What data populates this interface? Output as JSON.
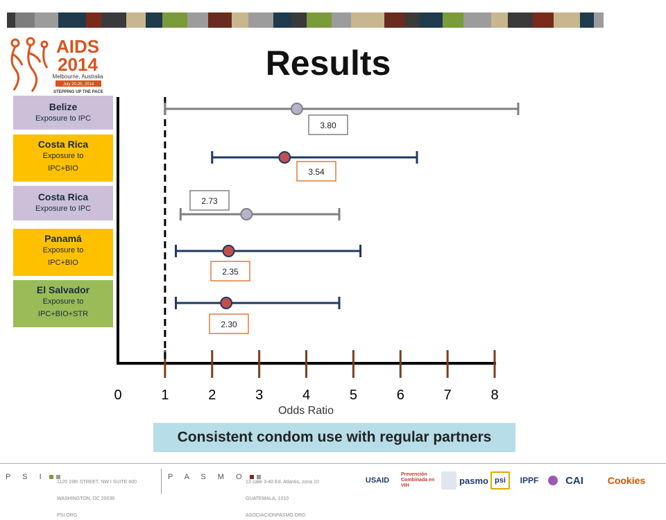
{
  "slide": {
    "title": "Results",
    "subtitle": "Consistent condom use with regular partners"
  },
  "conference_logo": {
    "title": "AIDS",
    "year": "2014",
    "location": "Melbourne, Australia",
    "dates": "July 20-25, 2014",
    "tagline": "STEPPING UP THE PACE"
  },
  "colors": {
    "navy": "#1f3864",
    "grey": "#7f7f7f",
    "red_marker": "#c0504d",
    "lavender_marker": "#b4b2cc",
    "tick": "#7b3f1a",
    "label_box_navy_border": "#e07b39",
    "label_box_grey_border": "#808080",
    "lavender_box": "#ccc0d9",
    "gold_box": "#ffc000",
    "green_box": "#9bbb59",
    "subtitle_box": "#b7dde8"
  },
  "top_bar_colors": [
    "#3a3a3a",
    "#7e7e7e",
    "#9c9c9c",
    "#1f3b4d",
    "#7a2a1a",
    "#3a3a3a",
    "#c8b78e",
    "#1f3b4d",
    "#7a9b3a",
    "#9c9c9c",
    "#6b2a1f",
    "#c8b78e",
    "#9c9c9c",
    "#1f3b4d",
    "#3a3a3a",
    "#7a9b3a",
    "#9c9c9c",
    "#c8b78e",
    "#6b2a1f",
    "#3a3a3a",
    "#1f3b4d",
    "#7a9b3a",
    "#9c9c9c",
    "#c8b78e",
    "#3a3a3a",
    "#7a2a1a",
    "#c8b78e",
    "#1f3b4d",
    "#9c9c9c"
  ],
  "chart_data": {
    "type": "forest",
    "xlabel": "Odds Ratio",
    "xlim": [
      0,
      8
    ],
    "xticks": [
      "0",
      "1",
      "2",
      "3",
      "4",
      "5",
      "6",
      "7",
      "8"
    ],
    "reference_line": 1,
    "rows": [
      {
        "country": "Belize",
        "exposure": "Exposure to IPC",
        "box_color": "lavender",
        "style": "grey",
        "estimate": 3.8,
        "label": "3.80",
        "ci_low": 1.0,
        "ci_high": 8.5
      },
      {
        "country": "Costa Rica",
        "exposure": "Exposure to IPC+BIO",
        "exposure_lines": [
          "Exposure to",
          "IPC+BIO"
        ],
        "box_color": "gold",
        "style": "navy",
        "estimate": 3.54,
        "label": "3.54",
        "ci_low": 2.0,
        "ci_high": 6.35
      },
      {
        "country": "Costa Rica",
        "exposure": "Exposure to IPC",
        "box_color": "lavender",
        "style": "grey",
        "estimate": 2.73,
        "label": "2.73",
        "ci_low": 1.33,
        "ci_high": 4.7
      },
      {
        "country": "Panamá",
        "exposure": "Exposure to IPC+BIO",
        "exposure_lines": [
          "Exposure to",
          "IPC+BIO"
        ],
        "box_color": "gold",
        "style": "navy",
        "estimate": 2.35,
        "label": "2.35",
        "ci_low": 1.23,
        "ci_high": 5.15
      },
      {
        "country": "El Salvador",
        "exposure": "Exposure to IPC+BIO+STR",
        "exposure_lines": [
          "Exposure to",
          "IPC+BIO+STR"
        ],
        "box_color": "green",
        "style": "navy",
        "estimate": 2.3,
        "label": "2.30",
        "ci_low": 1.23,
        "ci_high": 4.7
      }
    ]
  },
  "footer": {
    "psi_brand": "P S I",
    "psi_address": [
      "1120 19th STREET, NW I SUITE 600",
      "WASHINGTON, DC 20036",
      "PSI.ORG"
    ],
    "pasmo_brand": "P A S M O",
    "pasmo_address": [
      "13 calle 3-40 Ed. Atlantis, zona 10",
      "GUATEMALA, 1010",
      "ASOCIACIONPASMO.ORG"
    ],
    "partners": [
      "USAID",
      "Prevención Combinada en VIH",
      "pasmo",
      "psi",
      "IPPF",
      "CAI",
      "Cookies"
    ]
  }
}
